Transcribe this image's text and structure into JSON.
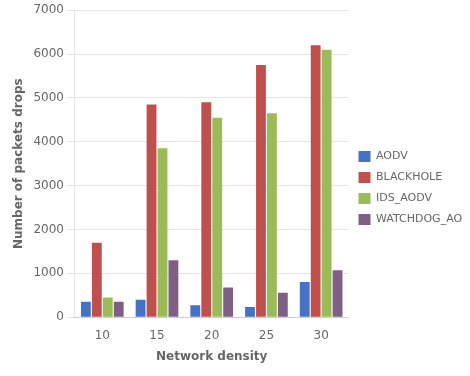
{
  "chart_data": {
    "type": "bar",
    "xlabel": "Network density",
    "ylabel": "Number of packets drops",
    "categories": [
      "10",
      "15",
      "20",
      "25",
      "30"
    ],
    "series": [
      {
        "name": "AODV",
        "color": "#4472C4",
        "values": [
          350,
          400,
          270,
          230,
          800
        ]
      },
      {
        "name": "BLACKHOLE",
        "color": "#C0504D",
        "values": [
          1700,
          4850,
          4900,
          5750,
          6200
        ]
      },
      {
        "name": "IDS_AODV",
        "color": "#9BBB59",
        "values": [
          450,
          3850,
          4550,
          4650,
          6100
        ]
      },
      {
        "name": "WATCHDOG_AODV",
        "color": "#7F6084",
        "values": [
          350,
          1300,
          680,
          560,
          1070
        ]
      }
    ],
    "ylim": [
      0,
      7000
    ],
    "yticks": [
      0,
      1000,
      2000,
      3000,
      4000,
      5000,
      6000,
      7000
    ],
    "grid": true,
    "legend": "right"
  }
}
